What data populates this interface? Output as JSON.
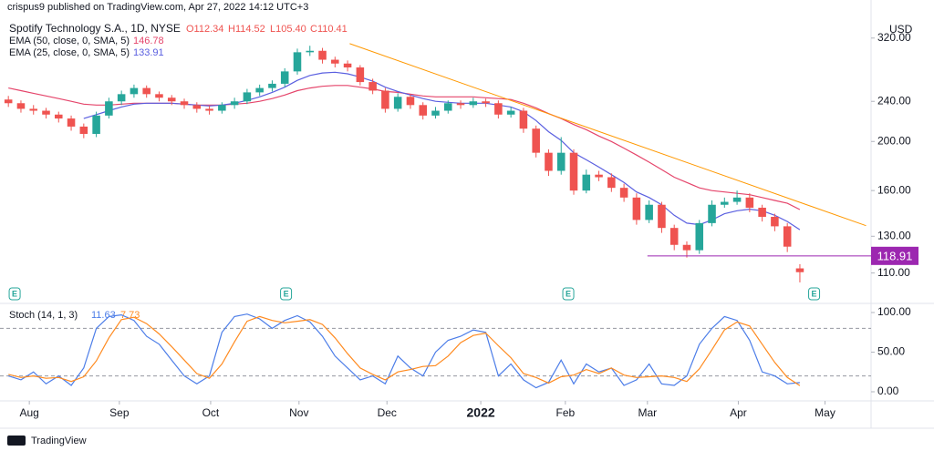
{
  "chart_data": {
    "type": "candlestick",
    "published": "crispus9 published on TradingView.com, Apr 27, 2022 14:12 UTC+3",
    "title": "Spotify Technology S.A., 1D, NYSE",
    "ohlc_legend": [
      "O112.34",
      "H114.52",
      "L105.40",
      "C110.41"
    ],
    "y_label": "USD",
    "brand": "TradingView",
    "log_scale": true,
    "up_color": "#26a69a",
    "down_color": "#ef5350",
    "xlim": [
      -2,
      206
    ],
    "xticks": [
      {
        "value": 5,
        "label": "Aug"
      },
      {
        "value": 26.5,
        "label": "Sep"
      },
      {
        "value": 48.3,
        "label": "Oct"
      },
      {
        "value": 69.4,
        "label": "Nov"
      },
      {
        "value": 90.4,
        "label": "Dec"
      },
      {
        "value": 112.8,
        "label": "2022"
      },
      {
        "value": 133,
        "label": "Feb"
      },
      {
        "value": 152.6,
        "label": "Mar"
      },
      {
        "value": 174.3,
        "label": "Apr"
      },
      {
        "value": 195,
        "label": "May"
      }
    ],
    "ylim": [
      97,
      336
    ],
    "yticks": [
      {
        "value": 320,
        "label": "320.00"
      },
      {
        "value": 240,
        "label": "240.00"
      },
      {
        "value": 200,
        "label": "200.00"
      },
      {
        "value": 160,
        "label": "160.00"
      },
      {
        "value": 130,
        "label": "130.00"
      },
      {
        "value": 110,
        "label": "110.00"
      }
    ],
    "x": [
      0,
      3,
      6,
      9,
      12,
      15,
      18,
      21,
      24,
      27,
      30,
      33,
      36,
      39,
      42,
      45,
      48,
      51,
      54,
      57,
      60,
      63,
      66,
      69,
      72,
      75,
      78,
      81,
      84,
      87,
      90,
      93,
      96,
      99,
      102,
      105,
      108,
      111,
      114,
      117,
      120,
      123,
      126,
      129,
      132,
      135,
      138,
      141,
      144,
      147,
      150,
      153,
      156,
      159,
      162,
      165,
      168,
      171,
      174,
      177,
      180,
      183,
      186,
      189
    ],
    "open": [
      242,
      238,
      232,
      230,
      226,
      222,
      214,
      207,
      225,
      240,
      248,
      255,
      248,
      244,
      240,
      236,
      232,
      230,
      236,
      240,
      250,
      255,
      260,
      275,
      300,
      302,
      290,
      285,
      280,
      262,
      252,
      232,
      245,
      236,
      225,
      230,
      238,
      236,
      240,
      238,
      226,
      230,
      212,
      190,
      175,
      190,
      160,
      172,
      170,
      162,
      155,
      140,
      150,
      135,
      125,
      122,
      138,
      150,
      152,
      155,
      148,
      142,
      136,
      112.34
    ],
    "high": [
      246,
      241,
      236,
      233,
      229,
      225,
      217,
      229,
      244,
      252,
      259,
      258,
      251,
      247,
      243,
      239,
      235,
      239,
      244,
      254,
      259,
      264,
      279,
      305,
      309,
      306,
      294,
      289,
      283,
      266,
      255,
      249,
      248,
      239,
      234,
      241,
      241,
      244,
      243,
      241,
      234,
      233,
      215,
      193,
      204,
      193,
      176,
      175,
      173,
      165,
      158,
      153,
      152,
      137,
      127,
      140,
      153,
      155,
      160,
      158,
      150,
      144,
      138,
      114.52
    ],
    "low": [
      234,
      228,
      226,
      222,
      218,
      210,
      203,
      204,
      222,
      236,
      244,
      244,
      240,
      236,
      232,
      228,
      226,
      227,
      232,
      237,
      246,
      251,
      256,
      271,
      295,
      285,
      280,
      275,
      258,
      248,
      228,
      229,
      232,
      221,
      222,
      227,
      232,
      233,
      234,
      222,
      223,
      208,
      186,
      171,
      172,
      157,
      158,
      167,
      159,
      152,
      137,
      138,
      132,
      122,
      118,
      120,
      136,
      148,
      150,
      145,
      139,
      133,
      121,
      105.4
    ],
    "close": [
      238,
      232,
      230,
      226,
      222,
      214,
      207,
      225,
      240,
      248,
      255,
      248,
      244,
      240,
      236,
      232,
      230,
      236,
      240,
      250,
      255,
      260,
      275,
      300,
      302,
      290,
      285,
      280,
      262,
      252,
      232,
      245,
      236,
      225,
      230,
      238,
      236,
      240,
      238,
      226,
      230,
      212,
      190,
      175,
      190,
      160,
      172,
      170,
      162,
      155,
      140,
      150,
      135,
      125,
      122,
      138,
      150,
      152,
      155,
      148,
      142,
      136,
      124,
      110.41
    ],
    "series": [
      {
        "name": "EMA (50, close, 0, SMA, 5)",
        "color": "#e5456b",
        "values": [
          255,
          252,
          249,
          246,
          243,
          240,
          237,
          236,
          236,
          237,
          238,
          238,
          238,
          238,
          237,
          236,
          236,
          236,
          237,
          238,
          240,
          243,
          247,
          252,
          255,
          257,
          258,
          258,
          256,
          254,
          251,
          250,
          248,
          246,
          245,
          245,
          245,
          245,
          244,
          243,
          242,
          238,
          233,
          227,
          222,
          216,
          211,
          205,
          200,
          194,
          188,
          182,
          176,
          170,
          166,
          162,
          160,
          159,
          158,
          157,
          155,
          153,
          151,
          146.78
        ]
      },
      {
        "name": "EMA (25, close, 0, SMA, 5)",
        "color": "#5a5fe0",
        "values": [
          null,
          null,
          null,
          null,
          null,
          null,
          222,
          226,
          230,
          234,
          237,
          238,
          238,
          238,
          237,
          236,
          235,
          236,
          238,
          241,
          245,
          250,
          256,
          264,
          270,
          273,
          274,
          272,
          268,
          263,
          256,
          251,
          247,
          243,
          240,
          239,
          238,
          238,
          238,
          236,
          234,
          229,
          220,
          209,
          201,
          190,
          184,
          178,
          172,
          166,
          159,
          155,
          150,
          143,
          138,
          137,
          140,
          144,
          146,
          147,
          146,
          143,
          139,
          133.91
        ]
      }
    ],
    "trendline": {
      "x": [
        81.5,
        204.8
      ],
      "values": [
        312,
        136.4
      ],
      "color": "#ff9800"
    },
    "horizontal_line": {
      "x_start": 152.6,
      "value": 118.91,
      "color": "#9c27b0"
    },
    "earnings": [
      {
        "x": 1.5,
        "label": "E"
      },
      {
        "x": 66.3,
        "label": "E"
      },
      {
        "x": 133.7,
        "label": "E"
      },
      {
        "x": 192.4,
        "label": "E"
      }
    ],
    "oscillator": {
      "name": "Stoch (14, 1, 3)",
      "ylim": [
        -11.5,
        111.5
      ],
      "yticks": [
        {
          "value": 100,
          "label": "100.00"
        },
        {
          "value": 50,
          "label": "50.00"
        },
        {
          "value": 0,
          "label": "0.00"
        }
      ],
      "bands": [
        80,
        20
      ],
      "series": [
        {
          "color": "#4c7de8",
          "values": [
            20,
            15,
            25,
            10,
            20,
            8,
            30,
            80,
            95,
            97,
            90,
            70,
            60,
            40,
            20,
            10,
            20,
            75,
            95,
            98,
            92,
            80,
            90,
            96,
            88,
            70,
            45,
            30,
            15,
            20,
            10,
            45,
            30,
            20,
            50,
            65,
            70,
            78,
            75,
            20,
            35,
            15,
            5,
            12,
            40,
            10,
            35,
            25,
            30,
            8,
            15,
            35,
            10,
            8,
            20,
            60,
            80,
            95,
            90,
            65,
            25,
            20,
            10,
            11.63
          ]
        },
        {
          "color": "#ff8a1f",
          "values": [
            22,
            18,
            20,
            17,
            18,
            13,
            19,
            39,
            68,
            91,
            94,
            86,
            73,
            57,
            40,
            23,
            17,
            35,
            63,
            89,
            95,
            90,
            87,
            89,
            91,
            85,
            68,
            48,
            30,
            22,
            15,
            25,
            28,
            32,
            33,
            45,
            62,
            71,
            74,
            58,
            43,
            23,
            18,
            11,
            19,
            21,
            28,
            23,
            30,
            21,
            18,
            19,
            20,
            18,
            13,
            29,
            53,
            78,
            88,
            83,
            60,
            37,
            18,
            7.73
          ]
        }
      ]
    }
  }
}
